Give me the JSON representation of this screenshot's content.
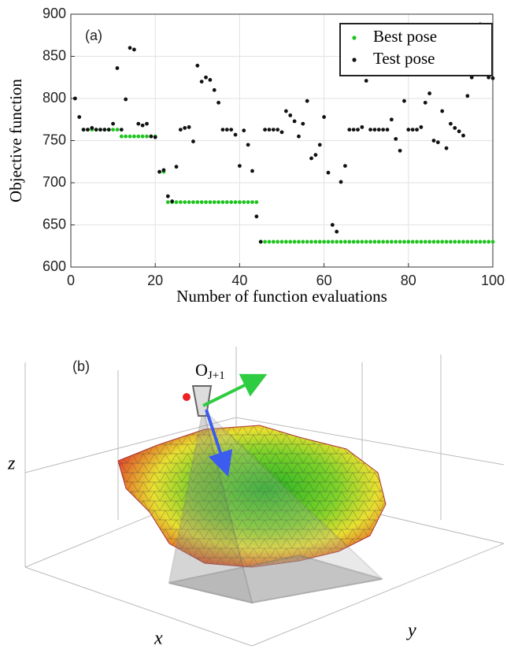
{
  "chart_data": {
    "type": "scatter",
    "panel_label": "(a)",
    "x_label": "Number of function evaluations",
    "y_label": "Objective function",
    "xlim": [
      0,
      100
    ],
    "ylim": [
      600,
      900
    ],
    "xticks": [
      0,
      20,
      40,
      60,
      80,
      100
    ],
    "yticks": [
      600,
      650,
      700,
      750,
      800,
      850,
      900
    ],
    "grid": true,
    "legend": "upper-right",
    "series": [
      {
        "name": "Best pose",
        "color": "#1ec41e",
        "x": [
          3,
          4,
          5,
          6,
          7,
          8,
          9,
          10,
          11,
          12,
          13,
          14,
          15,
          16,
          17,
          18,
          19,
          20,
          21,
          22,
          23,
          24,
          25,
          26,
          27,
          28,
          29,
          30,
          31,
          32,
          33,
          34,
          35,
          36,
          37,
          38,
          39,
          40,
          41,
          42,
          43,
          44,
          45,
          46,
          47,
          48,
          49,
          50,
          51,
          52,
          53,
          54,
          55,
          56,
          57,
          58,
          59,
          60,
          61,
          62,
          63,
          64,
          65,
          66,
          67,
          68,
          69,
          70,
          71,
          72,
          73,
          74,
          75,
          76,
          77,
          78,
          79,
          80,
          81,
          82,
          83,
          84,
          85,
          86,
          87,
          88,
          89,
          90,
          91,
          92,
          93,
          94,
          95,
          96,
          97,
          98,
          99,
          100
        ],
        "values": [
          763,
          763,
          763,
          763,
          763,
          763,
          763,
          763,
          763,
          755,
          755,
          755,
          755,
          755,
          755,
          755,
          755,
          755,
          713,
          713,
          677,
          677,
          677,
          677,
          677,
          677,
          677,
          677,
          677,
          677,
          677,
          677,
          677,
          677,
          677,
          677,
          677,
          677,
          677,
          677,
          677,
          677,
          630,
          630,
          630,
          630,
          630,
          630,
          630,
          630,
          630,
          630,
          630,
          630,
          630,
          630,
          630,
          630,
          630,
          630,
          630,
          630,
          630,
          630,
          630,
          630,
          630,
          630,
          630,
          630,
          630,
          630,
          630,
          630,
          630,
          630,
          630,
          630,
          630,
          630,
          630,
          630,
          630,
          630,
          630,
          630,
          630,
          630,
          630,
          630,
          630,
          630,
          630,
          630,
          630,
          630,
          630,
          630
        ]
      },
      {
        "name": "Test pose",
        "color": "#111111",
        "x": [
          1,
          2,
          3,
          4,
          5,
          6,
          7,
          8,
          9,
          10,
          11,
          12,
          13,
          14,
          15,
          16,
          17,
          18,
          19,
          20,
          21,
          22,
          23,
          24,
          25,
          26,
          27,
          28,
          29,
          30,
          31,
          32,
          33,
          34,
          35,
          36,
          37,
          38,
          39,
          40,
          41,
          42,
          43,
          44,
          45,
          46,
          47,
          48,
          49,
          50,
          51,
          52,
          53,
          54,
          55,
          56,
          57,
          58,
          59,
          60,
          61,
          62,
          63,
          64,
          65,
          66,
          67,
          68,
          69,
          70,
          71,
          72,
          73,
          74,
          75,
          76,
          77,
          78,
          79,
          80,
          81,
          82,
          83,
          84,
          85,
          86,
          87,
          88,
          89,
          90,
          91,
          92,
          93,
          94,
          95,
          96,
          97,
          98,
          99,
          100
        ],
        "values": [
          800,
          778,
          763,
          763,
          765,
          763,
          763,
          763,
          763,
          770,
          836,
          763,
          799,
          860,
          858,
          770,
          768,
          770,
          755,
          754,
          713,
          715,
          684,
          678,
          719,
          763,
          765,
          766,
          749,
          839,
          820,
          825,
          822,
          810,
          795,
          763,
          763,
          763,
          757,
          720,
          762,
          745,
          714,
          660,
          630,
          763,
          763,
          763,
          763,
          760,
          785,
          780,
          773,
          755,
          770,
          797,
          729,
          733,
          745,
          778,
          712,
          650,
          642,
          701,
          720,
          763,
          763,
          763,
          766,
          821,
          763,
          763,
          763,
          763,
          763,
          775,
          752,
          738,
          797,
          763,
          763,
          763,
          766,
          795,
          806,
          750,
          748,
          785,
          741,
          770,
          765,
          761,
          756,
          803,
          825,
          868,
          888,
          865,
          825,
          824
        ]
      }
    ]
  },
  "panel_b": {
    "panel_label": "(b)",
    "origin_label": "O",
    "origin_subscript": "J+1",
    "x_axis": "x",
    "y_axis": "y",
    "z_axis": "z"
  }
}
